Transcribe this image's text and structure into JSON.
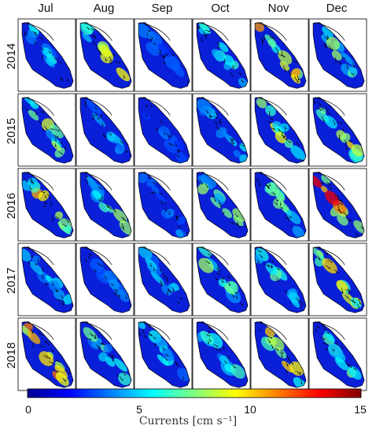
{
  "months": [
    "Jul",
    "Aug",
    "Sep",
    "Oct",
    "Nov",
    "Dec"
  ],
  "years": [
    "2014",
    "2015",
    "2016",
    "2017",
    "2018"
  ],
  "colorbar": {
    "ticks": [
      "0",
      "5",
      "10",
      "15"
    ],
    "tick_values": [
      0,
      5,
      10,
      15
    ],
    "min": 0,
    "max": 15,
    "label": "Currents [cm s⁻¹]",
    "colormap": "jet"
  },
  "panel_intensity": [
    [
      0.3,
      0.55,
      0.15,
      0.4,
      0.9,
      0.45
    ],
    [
      0.5,
      0.25,
      0.15,
      0.3,
      0.55,
      0.7
    ],
    [
      0.65,
      0.45,
      0.2,
      0.45,
      0.4,
      0.85
    ],
    [
      0.3,
      0.2,
      0.3,
      0.45,
      0.45,
      0.65
    ],
    [
      0.8,
      0.4,
      0.3,
      0.35,
      0.6,
      0.45
    ]
  ],
  "colors": {
    "water_base": "#0a1fd8",
    "frame": "#000000"
  }
}
